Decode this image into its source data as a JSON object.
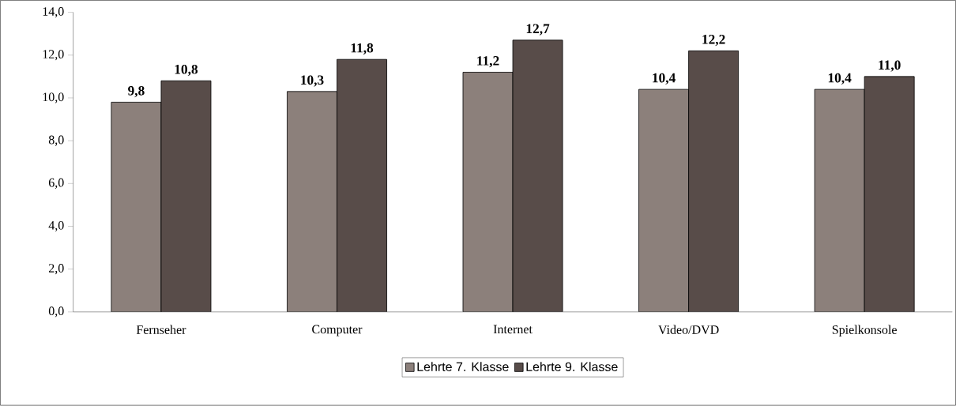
{
  "chart_data": {
    "type": "bar",
    "categories": [
      "Fernseher",
      "Computer",
      "Internet",
      "Video/DVD",
      "Spielkonsole"
    ],
    "series": [
      {
        "name": "Lehrte 7. Klasse",
        "color": "#8c807b",
        "values": [
          9.8,
          10.3,
          11.2,
          10.4,
          10.4
        ],
        "value_labels": [
          "9,8",
          "10,3",
          "11,2",
          "10,4",
          "10,4"
        ]
      },
      {
        "name": "Lehrte 9. Klasse",
        "color": "#584c49",
        "values": [
          10.8,
          11.8,
          12.7,
          12.2,
          11.0
        ],
        "value_labels": [
          "10,8",
          "11,8",
          "12,7",
          "12,2",
          "11,0"
        ]
      }
    ],
    "ylim": [
      0,
      14
    ],
    "yticks": [
      {
        "value": 0,
        "label": "0,0"
      },
      {
        "value": 2,
        "label": "2,0"
      },
      {
        "value": 4,
        "label": "4,0"
      },
      {
        "value": 6,
        "label": "6,0"
      },
      {
        "value": 8,
        "label": "8,0"
      },
      {
        "value": 10,
        "label": "10,0"
      },
      {
        "value": 12,
        "label": "12,0"
      },
      {
        "value": 14,
        "label": "14,0"
      }
    ],
    "grid": false,
    "legend": "bottom"
  }
}
